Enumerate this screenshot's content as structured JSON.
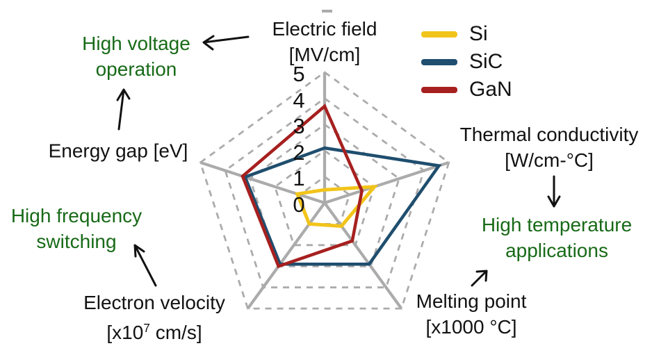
{
  "chart_data": {
    "type": "radar",
    "title": "",
    "scale": {
      "min": 0,
      "max": 5,
      "tick_labels": [
        "0",
        "1",
        "2",
        "3",
        "4",
        "5"
      ]
    },
    "grid": {
      "rings": "dashed",
      "spokes": "solid",
      "color": "#ABABAB"
    },
    "axes": [
      {
        "line1": "Electric field",
        "line2": "[MV/cm]"
      },
      {
        "line1": "Thermal conductivity",
        "line2": "[W/cm-°C]"
      },
      {
        "line1": "Melting point",
        "line2": "[x1000 °C]"
      },
      {
        "line1": "Electron velocity",
        "line2_prefix": "[x10",
        "line2_superscript": "7",
        "line2_suffix": " cm/s]"
      },
      {
        "line1": "Energy gap [eV]",
        "line2": ""
      }
    ],
    "axes_order_note": "clockwise from top: Electric field, Thermal conductivity, Melting point, Electron velocity, Energy gap",
    "series": [
      {
        "name": "Si",
        "color": "#F2C41B",
        "values": [
          0.5,
          2.0,
          1.1,
          1.0,
          1.1
        ]
      },
      {
        "name": "SiC",
        "color": "#1F4E6E",
        "values": [
          2.1,
          4.6,
          2.9,
          2.9,
          3.2
        ]
      },
      {
        "name": "GaN",
        "color": "#A6201F",
        "values": [
          3.7,
          1.5,
          1.8,
          3.0,
          3.3
        ]
      }
    ],
    "legend_position": "top-right",
    "annotations": [
      {
        "line1": "High voltage",
        "line2": "operation"
      },
      {
        "line1": "High temperature",
        "line2": "applications"
      },
      {
        "line1": "High frequency",
        "line2": "switching"
      }
    ],
    "colors": {
      "annotation_text": "#186A18",
      "axis_grid": "#ABABAB",
      "label_text": "#121212"
    }
  }
}
